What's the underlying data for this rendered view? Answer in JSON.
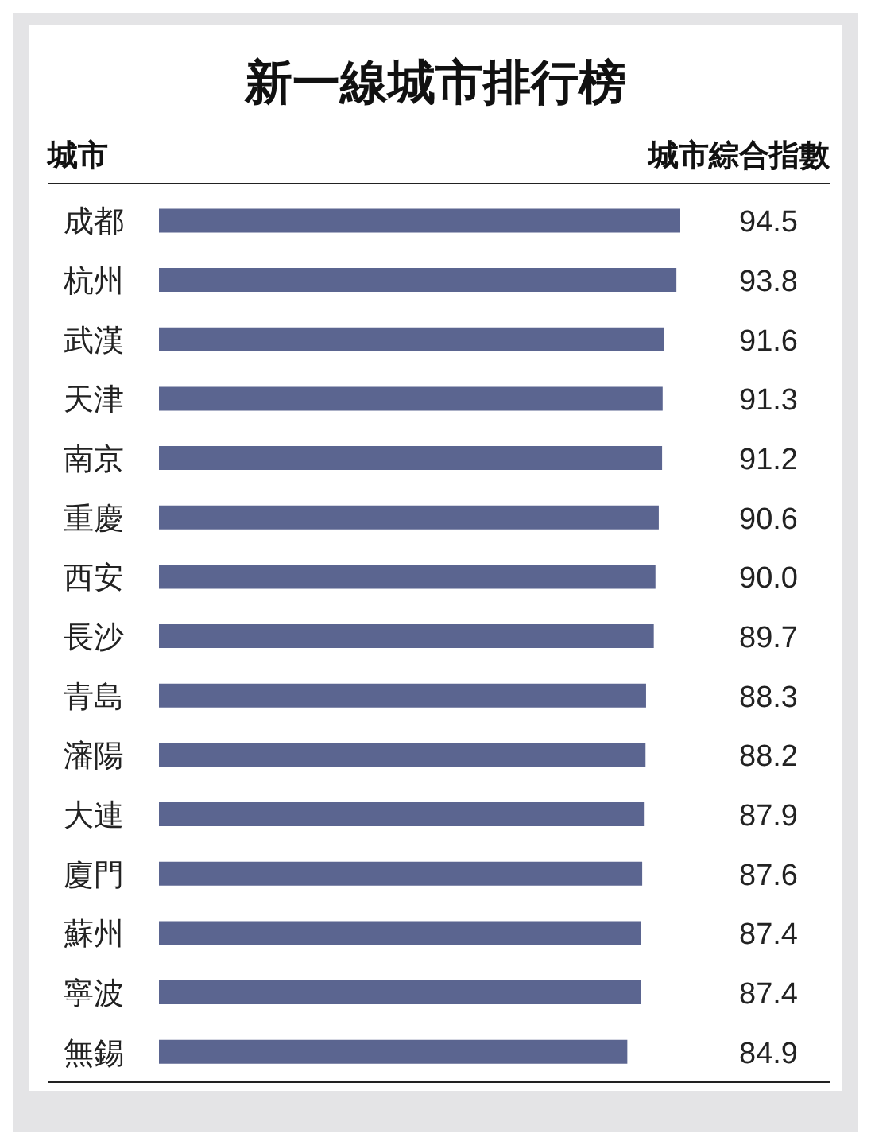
{
  "chart_data": {
    "type": "bar",
    "orientation": "horizontal",
    "title": "新一線城市排行榜",
    "ylabel": "城市",
    "xlabel": "城市綜合指數",
    "categories": [
      "成都",
      "杭州",
      "武漢",
      "天津",
      "南京",
      "重慶",
      "西安",
      "長沙",
      "青島",
      "瀋陽",
      "大連",
      "廈門",
      "蘇州",
      "寧波",
      "無錫"
    ],
    "values": [
      94.5,
      93.8,
      91.6,
      91.3,
      91.2,
      90.6,
      90.0,
      89.7,
      88.3,
      88.2,
      87.9,
      87.6,
      87.4,
      87.4,
      84.9
    ],
    "value_labels": [
      "94.5",
      "93.8",
      "91.6",
      "91.3",
      "91.2",
      "90.6",
      "90.0",
      "89.7",
      "88.3",
      "88.2",
      "87.9",
      "87.6",
      "87.4",
      "87.4",
      "84.9"
    ],
    "color": "#5b6590",
    "data_labels": true,
    "grid": false,
    "legend": false
  }
}
